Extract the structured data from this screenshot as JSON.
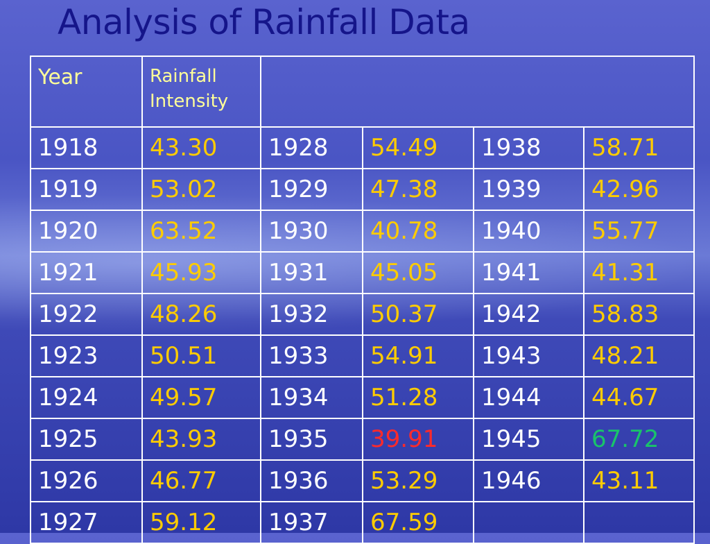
{
  "title": "Analysis of Rainfall Data",
  "table": {
    "header": [
      "Year",
      "Rainfall Intensity"
    ],
    "rows": [
      [
        "1918",
        "43.30",
        "1928",
        "54.49",
        "1938",
        "58.71"
      ],
      [
        "1919",
        "53.02",
        "1929",
        "47.38",
        "1939",
        "42.96"
      ],
      [
        "1920",
        "63.52",
        "1930",
        "40.78",
        "1940",
        "55.77"
      ],
      [
        "1921",
        "45.93",
        "1931",
        "45.05",
        "1941",
        "41.31"
      ],
      [
        "1922",
        "48.26",
        "1932",
        "50.37",
        "1942",
        "58.83"
      ],
      [
        "1923",
        "50.51",
        "1933",
        "54.91",
        "1943",
        "48.21"
      ],
      [
        "1924",
        "49.57",
        "1934",
        "51.28",
        "1944",
        "44.67"
      ],
      [
        "1925",
        "43.93",
        "1935",
        "39.91",
        "1945",
        "67.72"
      ],
      [
        "1926",
        "46.77",
        "1936",
        "53.29",
        "1946",
        "43.11"
      ],
      [
        "1927",
        "59.12",
        "1937",
        "67.59"
      ]
    ],
    "colors": {
      "year": "#ffffff",
      "value": "#ffcc00",
      "minimum": "#ff2a2a",
      "maximum": "#19c46a",
      "header": "#ffff99"
    }
  }
}
